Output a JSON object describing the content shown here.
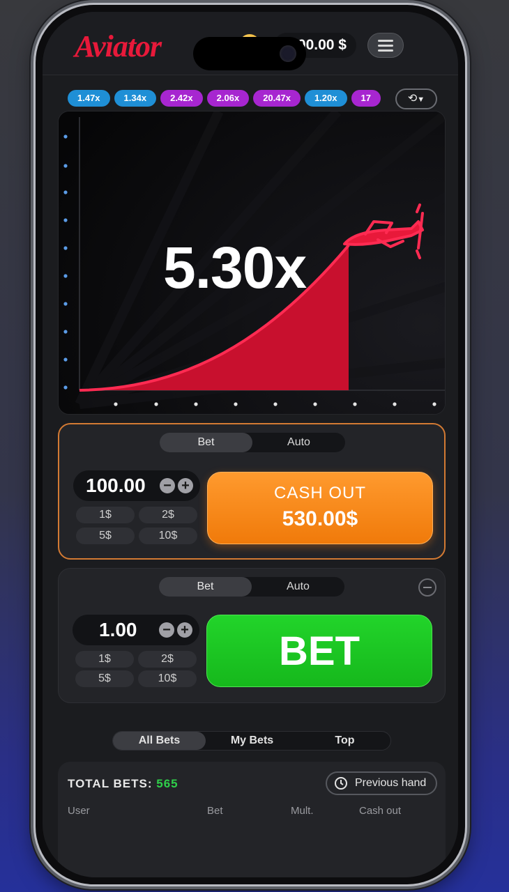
{
  "header": {
    "logo": "Aviator",
    "balance": "3000.00 $"
  },
  "history": {
    "multipliers": [
      {
        "label": "1.47x",
        "color": "#1f8fd6"
      },
      {
        "label": "1.34x",
        "color": "#1f8fd6"
      },
      {
        "label": "2.42x",
        "color": "#a726d0"
      },
      {
        "label": "2.06x",
        "color": "#a726d0"
      },
      {
        "label": "20.47x",
        "color": "#a726d0"
      },
      {
        "label": "1.20x",
        "color": "#1f8fd6"
      },
      {
        "label": "17",
        "color": "#a726d0"
      }
    ]
  },
  "game": {
    "multiplier": "5.30x",
    "curve_color": "#e8193a"
  },
  "bet_panel_1": {
    "tabs": [
      "Bet",
      "Auto"
    ],
    "active_tab": "Bet",
    "amount": "100.00",
    "quick_amounts": [
      "1$",
      "2$",
      "5$",
      "10$"
    ],
    "cashout_label": "CASH OUT",
    "cashout_amount": "530.00$"
  },
  "bet_panel_2": {
    "tabs": [
      "Bet",
      "Auto"
    ],
    "active_tab": "Bet",
    "amount": "1.00",
    "quick_amounts": [
      "1$",
      "2$",
      "5$",
      "10$"
    ],
    "bet_label": "BET"
  },
  "bets_list": {
    "tabs": [
      "All Bets",
      "My Bets",
      "Top"
    ],
    "active_tab": "All Bets",
    "total_label": "TOTAL BETS:",
    "total_value": "565",
    "previous_hand_label": "Previous hand",
    "columns": [
      "User",
      "Bet",
      "Mult.",
      "Cash out"
    ]
  }
}
